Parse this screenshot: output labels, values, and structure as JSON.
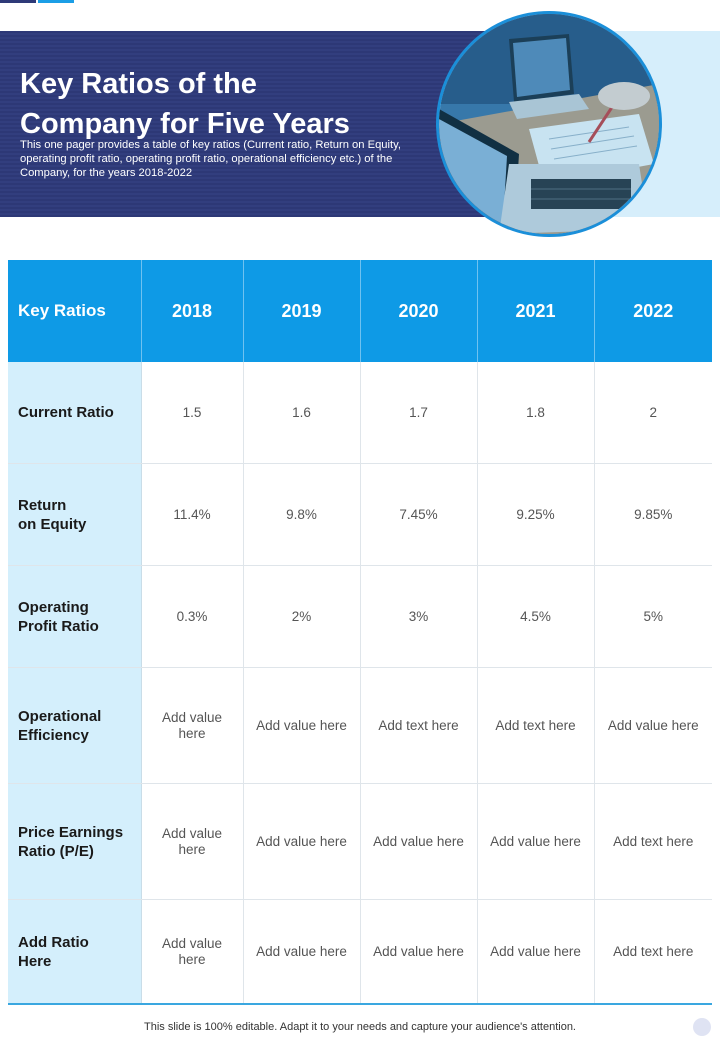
{
  "header": {
    "title_line1": "Key Ratios of the",
    "title_line2": "Company for Five Years",
    "description": "This one pager provides a table of key ratios (Current ratio, Return on Equity, operating profit ratio, operating profit ratio, operational efficiency etc.) of the Company, for the years 2018-2022"
  },
  "table": {
    "header": [
      "Key Ratios",
      "2018",
      "2019",
      "2020",
      "2021",
      "2022"
    ],
    "rows": [
      {
        "label_line1": "Current Ratio",
        "label_line2": "",
        "values": [
          "1.5",
          "1.6",
          "1.7",
          "1.8",
          "2"
        ]
      },
      {
        "label_line1": "Return",
        "label_line2": "on Equity",
        "values": [
          "11.4%",
          "9.8%",
          "7.45%",
          "9.25%",
          "9.85%"
        ]
      },
      {
        "label_line1": "Operating",
        "label_line2": "Profit Ratio",
        "values": [
          "0.3%",
          "2%",
          "3%",
          "4.5%",
          "5%"
        ]
      },
      {
        "label_line1": "Operational",
        "label_line2": "Efficiency",
        "values": [
          "Add value here",
          "Add value here",
          "Add text here",
          "Add text here",
          "Add value here"
        ]
      },
      {
        "label_line1": "Price Earnings",
        "label_line2": "Ratio (P/E)",
        "values": [
          "Add value here",
          "Add value here",
          "Add value here",
          "Add value here",
          "Add text here"
        ]
      },
      {
        "label_line1": "Add Ratio",
        "label_line2": "Here",
        "values": [
          "Add value here",
          "Add value here",
          "Add value here",
          "Add value here",
          "Add text here"
        ]
      }
    ]
  },
  "footer": {
    "text": "This slide is 100% editable. Adapt it to your needs and capture your audience's attention."
  },
  "colors": {
    "banner": "#2d3876",
    "accent": "#0e9ae6",
    "row_header_bg": "#d4effc"
  }
}
